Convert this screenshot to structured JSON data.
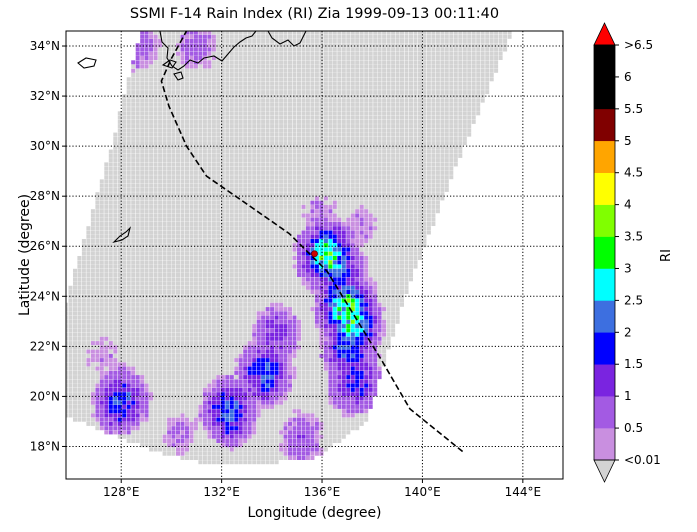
{
  "title": "SSMI F-14 Rain Index (RI) Zia 1999-09-13 00:11:40",
  "xlabel": "Longitude (degree)",
  "ylabel": "Latitude (degree)",
  "colorbar": {
    "label": "RI",
    "ticks": [
      "<0.01",
      "0.5",
      "1",
      "1.5",
      "2",
      "2.5",
      "3",
      "3.5",
      "4",
      "4.5",
      "5",
      "5.5",
      "6",
      ">6.5"
    ],
    "colors": [
      "#c98fe0",
      "#a35ae3",
      "#7a24e0",
      "#0000ff",
      "#3d6fe0",
      "#00ffff",
      "#00ff00",
      "#80ff00",
      "#ffff00",
      "#ffa500",
      "#800000",
      "#000000",
      "#000000"
    ],
    "under_color": "#d3d3d3",
    "over_color": "#ff0000"
  },
  "map": {
    "lon_range": [
      125.8,
      145.6
    ],
    "lat_range": [
      16.7,
      34.6
    ],
    "lon_ticks": [
      "128°E",
      "132°E",
      "136°E",
      "140°E",
      "144°E"
    ],
    "lat_ticks": [
      "18°N",
      "20°N",
      "22°N",
      "24°N",
      "26°N",
      "28°N",
      "30°N",
      "32°N",
      "34°N"
    ],
    "typhoon_center": {
      "lon": 135.7,
      "lat": 25.7
    },
    "track": [
      [
        141.6,
        17.8
      ],
      [
        139.5,
        19.5
      ],
      [
        138.4,
        21.4
      ],
      [
        137.3,
        23.2
      ],
      [
        136.2,
        25.0
      ],
      [
        134.7,
        26.5
      ],
      [
        132.7,
        27.9
      ],
      [
        131.4,
        28.8
      ],
      [
        130.6,
        30.0
      ],
      [
        129.9,
        31.6
      ],
      [
        129.6,
        32.6
      ],
      [
        130.0,
        33.5
      ],
      [
        130.6,
        34.6
      ]
    ],
    "rain_cells": [
      {
        "lon": 136.2,
        "lat": 25.6,
        "ri": 3.2
      },
      {
        "lon": 136.6,
        "lat": 25.0,
        "ri": 2.2
      },
      {
        "lon": 137.0,
        "lat": 23.5,
        "ri": 3.3
      },
      {
        "lon": 137.2,
        "lat": 22.9,
        "ri": 3.0
      },
      {
        "lon": 137.1,
        "lat": 21.9,
        "ri": 2.1
      },
      {
        "lon": 137.3,
        "lat": 20.6,
        "ri": 1.8
      },
      {
        "lon": 133.7,
        "lat": 20.9,
        "ri": 2.0
      },
      {
        "lon": 132.3,
        "lat": 19.4,
        "ri": 2.2
      },
      {
        "lon": 128.0,
        "lat": 19.8,
        "ri": 2.0
      },
      {
        "lon": 134.2,
        "lat": 22.5,
        "ri": 1.2
      },
      {
        "lon": 135.9,
        "lat": 27.2,
        "ri": 0.6
      },
      {
        "lon": 137.6,
        "lat": 26.8,
        "ri": 0.5
      },
      {
        "lon": 127.2,
        "lat": 21.6,
        "ri": 0.5
      },
      {
        "lon": 130.4,
        "lat": 18.5,
        "ri": 0.6
      },
      {
        "lon": 135.2,
        "lat": 18.3,
        "ri": 0.9
      },
      {
        "lon": 131.0,
        "lat": 34.0,
        "ri": 0.7
      },
      {
        "lon": 128.7,
        "lat": 34.0,
        "ri": 0.8
      }
    ]
  }
}
